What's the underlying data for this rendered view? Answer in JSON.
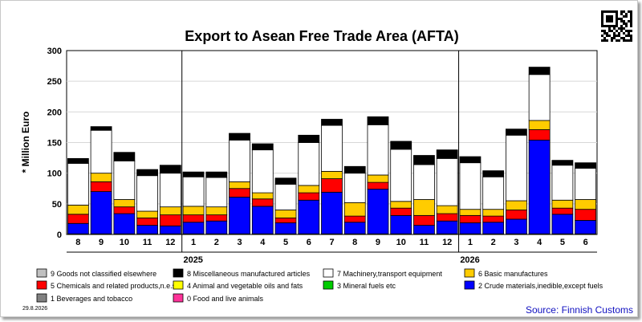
{
  "chart_data": {
    "type": "bar",
    "stacked": true,
    "title": "Export to Asean Free Trade Area (AFTA)",
    "ylabel": "* Million Euro",
    "ylim": [
      0,
      300
    ],
    "yticks": [
      0,
      50,
      100,
      150,
      200,
      250,
      300
    ],
    "grid": true,
    "legend_position": "bottom",
    "categories": [
      "8",
      "9",
      "10",
      "11",
      "12",
      "1",
      "2",
      "3",
      "4",
      "5",
      "6",
      "7",
      "8",
      "9",
      "10",
      "11",
      "12",
      "1",
      "2",
      "3",
      "4",
      "5",
      "6"
    ],
    "years": [
      {
        "label": "2025",
        "start_index": 5
      },
      {
        "label": "2026",
        "start_index": 17
      }
    ],
    "series": [
      {
        "name": "0 Food and live animals",
        "color": "#ff3399",
        "values": [
          1,
          1,
          1,
          1,
          1,
          1,
          1,
          1,
          1,
          1,
          1,
          1,
          1,
          1,
          1,
          1,
          1,
          1,
          1,
          1,
          1,
          1,
          1
        ]
      },
      {
        "name": "1 Beverages and tobacco",
        "color": "#808080",
        "values": [
          0,
          0,
          0,
          0,
          0,
          0,
          0,
          0,
          0,
          0,
          0,
          0,
          0,
          0,
          0,
          0,
          0,
          0,
          0,
          0,
          0,
          0,
          0
        ]
      },
      {
        "name": "2 Crude materials,inedible,except fuels",
        "color": "#0000ff",
        "values": [
          17,
          69,
          33,
          14,
          13,
          19,
          21,
          60,
          45,
          18,
          55,
          68,
          19,
          73,
          30,
          14,
          21,
          18,
          19,
          24,
          153,
          32,
          22
        ]
      },
      {
        "name": "3 Mineral fuels etc",
        "color": "#00cc00",
        "values": [
          0,
          0,
          0,
          0,
          0,
          0,
          0,
          0,
          0,
          0,
          0,
          0,
          0,
          0,
          0,
          0,
          0,
          0,
          0,
          0,
          0,
          0,
          0
        ]
      },
      {
        "name": "4 Animal and vegetable oils and fats",
        "color": "#ffff00",
        "values": [
          0,
          0,
          0,
          0,
          0,
          0,
          0,
          0,
          0,
          0,
          0,
          0,
          0,
          0,
          0,
          0,
          0,
          0,
          0,
          0,
          0,
          0,
          0
        ]
      },
      {
        "name": "5 Chemicals and related products,n.e.s.",
        "color": "#ff0000",
        "values": [
          15,
          16,
          11,
          12,
          18,
          12,
          10,
          14,
          12,
          8,
          12,
          22,
          10,
          11,
          12,
          16,
          12,
          12,
          10,
          15,
          17,
          10,
          18
        ]
      },
      {
        "name": "6 Basic manufactures",
        "color": "#ffcc00",
        "values": [
          15,
          14,
          12,
          11,
          13,
          14,
          13,
          11,
          10,
          13,
          12,
          12,
          22,
          12,
          11,
          26,
          13,
          10,
          11,
          15,
          15,
          13,
          16
        ]
      },
      {
        "name": "7 Machinery,transport equipment",
        "color": "#ffffff",
        "values": [
          68,
          70,
          63,
          58,
          55,
          48,
          48,
          68,
          70,
          42,
          70,
          75,
          48,
          82,
          85,
          57,
          77,
          76,
          53,
          107,
          75,
          57,
          51
        ]
      },
      {
        "name": "8 Miscellaneous manufactured articles",
        "color": "#000000",
        "values": [
          8,
          6,
          14,
          10,
          13,
          8,
          9,
          11,
          10,
          10,
          12,
          10,
          11,
          13,
          13,
          15,
          14,
          10,
          10,
          10,
          12,
          8,
          9
        ]
      },
      {
        "name": "9 Goods not classified elsewhere",
        "color": "#c0c0c0",
        "values": [
          0,
          0,
          0,
          0,
          0,
          0,
          0,
          0,
          0,
          0,
          0,
          0,
          0,
          0,
          0,
          0,
          0,
          0,
          0,
          0,
          0,
          0,
          0
        ]
      }
    ]
  },
  "legend_order": [
    9,
    8,
    7,
    6,
    5,
    4,
    3,
    2,
    1,
    0
  ],
  "footer": {
    "date": "29.8.2026",
    "source": "Source: Finnish Customs"
  },
  "qr_icon": "qr-code-icon"
}
